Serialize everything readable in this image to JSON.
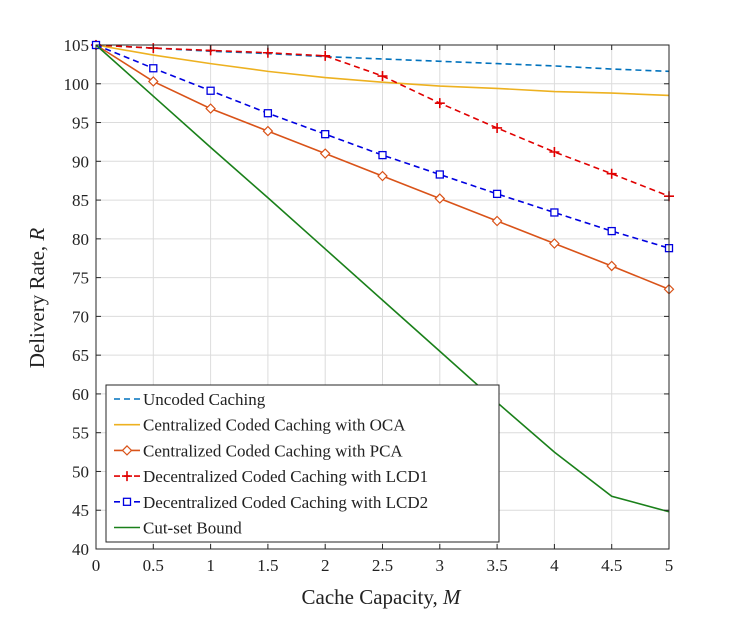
{
  "chart_data": {
    "type": "line",
    "title": "",
    "xlabel": "Cache Capacity, ",
    "xlabel_var": "M",
    "ylabel": "Delivery Rate, ",
    "ylabel_var": "R",
    "xlim": [
      0,
      5
    ],
    "ylim": [
      40,
      105
    ],
    "xticks": [
      0,
      0.5,
      1,
      1.5,
      2,
      2.5,
      3,
      3.5,
      4,
      4.5,
      5
    ],
    "yticks": [
      40,
      45,
      50,
      55,
      60,
      65,
      70,
      75,
      80,
      85,
      90,
      95,
      100,
      105
    ],
    "grid": true,
    "legend_position": "bottom-left",
    "x": [
      0,
      0.5,
      1,
      1.5,
      2,
      2.5,
      3,
      3.5,
      4,
      4.5,
      5
    ],
    "series": [
      {
        "name": "Uncoded Caching",
        "color": "#0072BD",
        "dash": "dashed",
        "marker": "none",
        "values": [
          105,
          104.6,
          104.2,
          103.9,
          103.5,
          103.2,
          102.9,
          102.6,
          102.3,
          101.9,
          101.6
        ]
      },
      {
        "name": "Centralized Coded Caching with OCA",
        "color": "#EDB120",
        "dash": "solid",
        "marker": "none",
        "values": [
          105,
          103.7,
          102.6,
          101.6,
          100.8,
          100.2,
          99.7,
          99.4,
          99.0,
          98.8,
          98.5
        ]
      },
      {
        "name": "Centralized Coded Caching with PCA",
        "color": "#D95319",
        "dash": "solid",
        "marker": "diamond",
        "values": [
          105,
          100.3,
          96.8,
          93.9,
          91.0,
          88.1,
          85.2,
          82.3,
          79.4,
          76.5,
          73.5
        ]
      },
      {
        "name": "Decentralized Coded Caching with LCD1",
        "color": "#E00000",
        "dash": "dashed",
        "marker": "plus",
        "values": [
          105,
          104.6,
          104.3,
          104.0,
          103.6,
          101.0,
          97.5,
          94.3,
          91.2,
          88.4,
          85.5
        ]
      },
      {
        "name": "Decentralized Coded Caching with LCD2",
        "color": "#0000E0",
        "dash": "dashed",
        "marker": "square",
        "values": [
          105,
          102.0,
          99.1,
          96.2,
          93.5,
          90.8,
          88.3,
          85.8,
          83.4,
          81.0,
          78.8
        ]
      },
      {
        "name": "Cut-set Bound",
        "color": "#1A801A",
        "dash": "solid",
        "marker": "none",
        "values": [
          105,
          98.4,
          91.8,
          85.3,
          78.7,
          72.1,
          65.5,
          58.9,
          52.5,
          46.8,
          44.8
        ]
      }
    ]
  }
}
